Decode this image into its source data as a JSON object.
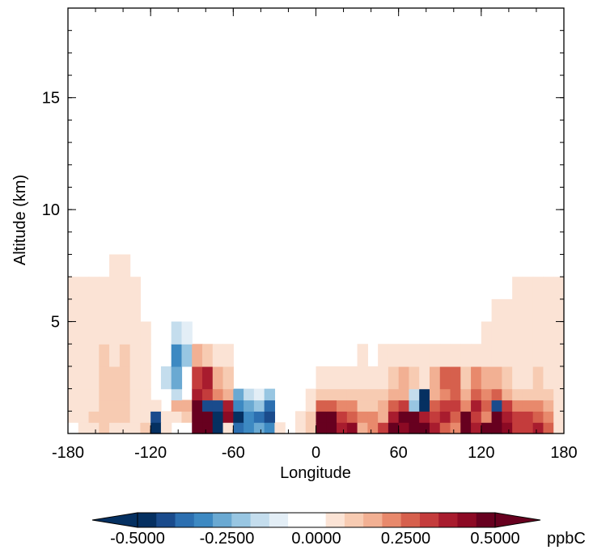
{
  "chart_data": {
    "type": "heatmap",
    "title": "",
    "xlabel": "Longitude",
    "ylabel": "Altitude (km)",
    "xlim": [
      -180,
      180
    ],
    "ylim": [
      0,
      19
    ],
    "x_ticks": [
      -180,
      -120,
      -60,
      0,
      60,
      120,
      180
    ],
    "x_tick_labels": [
      "-180",
      "-120",
      "-60",
      "0",
      "60",
      "120",
      "180"
    ],
    "y_ticks": [
      5,
      10,
      15
    ],
    "y_tick_labels": [
      "5",
      "10",
      "15"
    ],
    "colorbar": {
      "unit": "ppbC",
      "range": [
        -0.5,
        0.5
      ],
      "extend": "both",
      "tick_values": [
        -0.5,
        -0.25,
        0.0,
        0.25,
        0.5
      ],
      "tick_labels": [
        "-0.5000",
        "-0.2500",
        "0.0000",
        "0.2500",
        "0.5000"
      ],
      "colors": [
        "#053061",
        "#1a4b8c",
        "#2c6fb0",
        "#3d89c2",
        "#6aa9d2",
        "#98c6e2",
        "#c4dded",
        "#e3eef6",
        "#ffffff",
        "#ffffff",
        "#fbe3d5",
        "#f7cbb2",
        "#f2b093",
        "#e8896c",
        "#d6604d",
        "#c43c3c",
        "#a81c2e",
        "#8c0a24",
        "#67001f"
      ],
      "under_color": "#053061",
      "over_color": "#67001f"
    },
    "altitude_bands_km": [
      0,
      0.5,
      1,
      1.5,
      2,
      3,
      4,
      5,
      6,
      7,
      8,
      9
    ],
    "longitude_columns_deg": [
      -180,
      -172.5,
      -165,
      -157.5,
      -150,
      -142.5,
      -135,
      -127.5,
      -120,
      -112.5,
      -105,
      -97.5,
      -90,
      -82.5,
      -75,
      -67.5,
      -60,
      -52.5,
      -45,
      -37.5,
      -30,
      -22.5,
      -15,
      -7.5,
      0,
      7.5,
      15,
      22.5,
      30,
      37.5,
      45,
      52.5,
      60,
      67.5,
      75,
      82.5,
      90,
      97.5,
      105,
      112.5,
      120,
      127.5,
      135,
      142.5,
      150,
      157.5,
      165,
      172.5
    ],
    "values_ppbC": [
      [
        0.02,
        0.03,
        0.05,
        0.08,
        0.06,
        0.07,
        0.03,
        0.08,
        -0.5,
        0.05,
        -0.05,
        0.02,
        0.5,
        0.45,
        -0.45,
        0.03,
        -0.35,
        -0.3,
        -0.25,
        -0.3,
        0.03,
        0.0,
        0.05,
        0.1,
        0.45,
        0.5,
        0.35,
        0.4,
        0.15,
        0.2,
        0.3,
        0.45,
        0.4,
        0.5,
        0.45,
        0.35,
        0.25,
        0.2,
        0.5,
        0.35,
        0.45,
        0.45,
        0.4,
        0.3,
        0.3,
        0.35,
        0.25,
        0.05
      ],
      [
        0.05,
        0.05,
        0.08,
        0.1,
        0.08,
        0.08,
        0.05,
        0.05,
        -0.4,
        0.05,
        0.05,
        0.1,
        0.5,
        0.45,
        -0.5,
        0.4,
        -0.5,
        -0.3,
        -0.35,
        -0.4,
        0.02,
        -0.05,
        0.03,
        0.1,
        0.5,
        0.45,
        0.3,
        0.25,
        0.2,
        0.2,
        0.15,
        0.35,
        0.5,
        0.45,
        0.35,
        0.3,
        0.35,
        0.25,
        0.45,
        0.3,
        0.2,
        0.5,
        0.35,
        0.3,
        0.3,
        0.25,
        0.2,
        0.05
      ],
      [
        0.05,
        0.05,
        0.05,
        0.1,
        0.08,
        0.08,
        0.06,
        0.05,
        0.03,
        -0.05,
        0.15,
        0.15,
        0.45,
        -0.4,
        -0.4,
        0.35,
        -0.3,
        -0.25,
        -0.2,
        -0.35,
        -0.05,
        0.02,
        0.02,
        0.05,
        0.25,
        0.25,
        0.2,
        0.2,
        0.12,
        0.12,
        0.15,
        0.25,
        0.3,
        -0.2,
        -0.5,
        0.25,
        0.3,
        0.3,
        0.2,
        0.35,
        0.25,
        -0.4,
        0.3,
        0.2,
        0.2,
        0.2,
        0.15,
        0.05
      ],
      [
        0.06,
        0.06,
        0.06,
        0.1,
        0.08,
        0.08,
        0.05,
        0.05,
        0.02,
        -0.05,
        -0.15,
        -0.05,
        0.35,
        0.3,
        0.2,
        0.15,
        -0.25,
        -0.15,
        -0.1,
        -0.2,
        -0.02,
        0.02,
        0.02,
        0.03,
        0.1,
        0.12,
        0.1,
        0.1,
        0.08,
        0.08,
        0.1,
        0.15,
        0.15,
        -0.15,
        -0.45,
        0.15,
        0.2,
        0.25,
        0.15,
        0.25,
        0.2,
        0.25,
        0.15,
        0.1,
        0.1,
        0.1,
        0.1,
        0.05
      ],
      [
        0.06,
        0.06,
        0.06,
        0.1,
        0.08,
        0.1,
        0.06,
        0.04,
        0.02,
        -0.15,
        -0.25,
        -0.05,
        0.3,
        0.35,
        0.15,
        0.1,
        -0.05,
        -0.05,
        -0.03,
        -0.05,
        0.0,
        0.02,
        0.02,
        0.02,
        0.05,
        0.05,
        0.05,
        0.05,
        0.05,
        0.05,
        0.05,
        0.1,
        0.15,
        0.1,
        0.05,
        0.15,
        0.25,
        0.25,
        0.1,
        0.2,
        0.15,
        0.15,
        0.08,
        0.06,
        0.06,
        0.08,
        0.06,
        0.04
      ],
      [
        0.06,
        0.06,
        0.05,
        0.08,
        0.06,
        0.08,
        0.06,
        0.03,
        0.01,
        -0.05,
        -0.3,
        -0.2,
        0.15,
        0.1,
        0.05,
        0.03,
        -0.02,
        0.0,
        0.0,
        0.0,
        0.0,
        0.01,
        0.01,
        0.01,
        0.02,
        0.02,
        0.02,
        0.02,
        0.03,
        0.02,
        0.03,
        0.04,
        0.05,
        0.04,
        0.03,
        0.04,
        0.05,
        0.05,
        0.04,
        0.05,
        0.04,
        0.06,
        0.06,
        0.05,
        0.06,
        0.07,
        0.06,
        0.05
      ],
      [
        0.06,
        0.06,
        0.05,
        0.07,
        0.06,
        0.06,
        0.05,
        0.03,
        0.01,
        -0.03,
        -0.15,
        -0.08,
        0.02,
        0.02,
        0.01,
        0.02,
        0.01,
        0.0,
        0.0,
        0.0,
        0.0,
        0.0,
        0.0,
        0.0,
        0.01,
        0.01,
        0.01,
        0.01,
        0.01,
        0.01,
        0.01,
        0.01,
        0.01,
        0.01,
        0.01,
        0.01,
        0.02,
        0.02,
        0.02,
        0.02,
        0.03,
        0.04,
        0.05,
        0.05,
        0.06,
        0.06,
        0.06,
        0.05
      ],
      [
        0.05,
        0.05,
        0.05,
        0.06,
        0.05,
        0.05,
        0.04,
        0.02,
        0.0,
        -0.02,
        -0.03,
        -0.02,
        0.0,
        0.0,
        0.0,
        0.01,
        0.0,
        0.0,
        0.0,
        0.0,
        0.0,
        0.0,
        0.0,
        0.0,
        0.0,
        0.0,
        0.0,
        0.0,
        0.0,
        0.0,
        0.0,
        0.0,
        0.0,
        0.0,
        0.0,
        0.0,
        0.0,
        0.0,
        0.0,
        0.01,
        0.02,
        0.03,
        0.04,
        0.05,
        0.05,
        0.05,
        0.05,
        0.05
      ],
      [
        0.03,
        0.03,
        0.03,
        0.04,
        0.04,
        0.04,
        0.03,
        0.01,
        0.0,
        0.0,
        0.0,
        0.0,
        0.0,
        0.0,
        0.0,
        0.0,
        0.0,
        0.0,
        0.0,
        0.0,
        0.0,
        0.0,
        0.0,
        0.0,
        0.0,
        0.0,
        0.0,
        0.0,
        0.0,
        0.0,
        0.0,
        0.0,
        0.0,
        0.0,
        0.0,
        0.0,
        0.0,
        0.0,
        0.0,
        0.0,
        0.01,
        0.01,
        0.02,
        0.03,
        0.04,
        0.04,
        0.04,
        0.04
      ],
      [
        0.0,
        0.0,
        0.01,
        0.02,
        0.03,
        0.03,
        0.02,
        0.0,
        0.0,
        0.0,
        0.0,
        0.0,
        0.0,
        0.0,
        0.0,
        0.0,
        0.0,
        0.0,
        0.0,
        0.0,
        0.0,
        0.0,
        0.0,
        0.0,
        0.0,
        0.0,
        0.0,
        0.0,
        0.0,
        0.0,
        0.0,
        0.0,
        0.0,
        0.0,
        0.0,
        0.0,
        0.0,
        0.0,
        0.0,
        0.0,
        0.0,
        0.0,
        0.0,
        0.0,
        0.0,
        0.0,
        0.0,
        0.0
      ],
      [
        0.0,
        0.0,
        0.0,
        0.0,
        0.01,
        0.01,
        0.0,
        0.0,
        0.0,
        0.0,
        0.0,
        0.0,
        0.0,
        0.0,
        0.0,
        0.0,
        0.0,
        0.0,
        0.0,
        0.0,
        0.0,
        0.0,
        0.0,
        0.0,
        0.0,
        0.0,
        0.0,
        0.0,
        0.0,
        0.0,
        0.0,
        0.0,
        0.0,
        0.0,
        0.0,
        0.0,
        0.0,
        0.0,
        0.0,
        0.0,
        0.0,
        0.0,
        0.0,
        0.0,
        0.0,
        0.0,
        0.0,
        0.0
      ]
    ],
    "grid": false
  }
}
